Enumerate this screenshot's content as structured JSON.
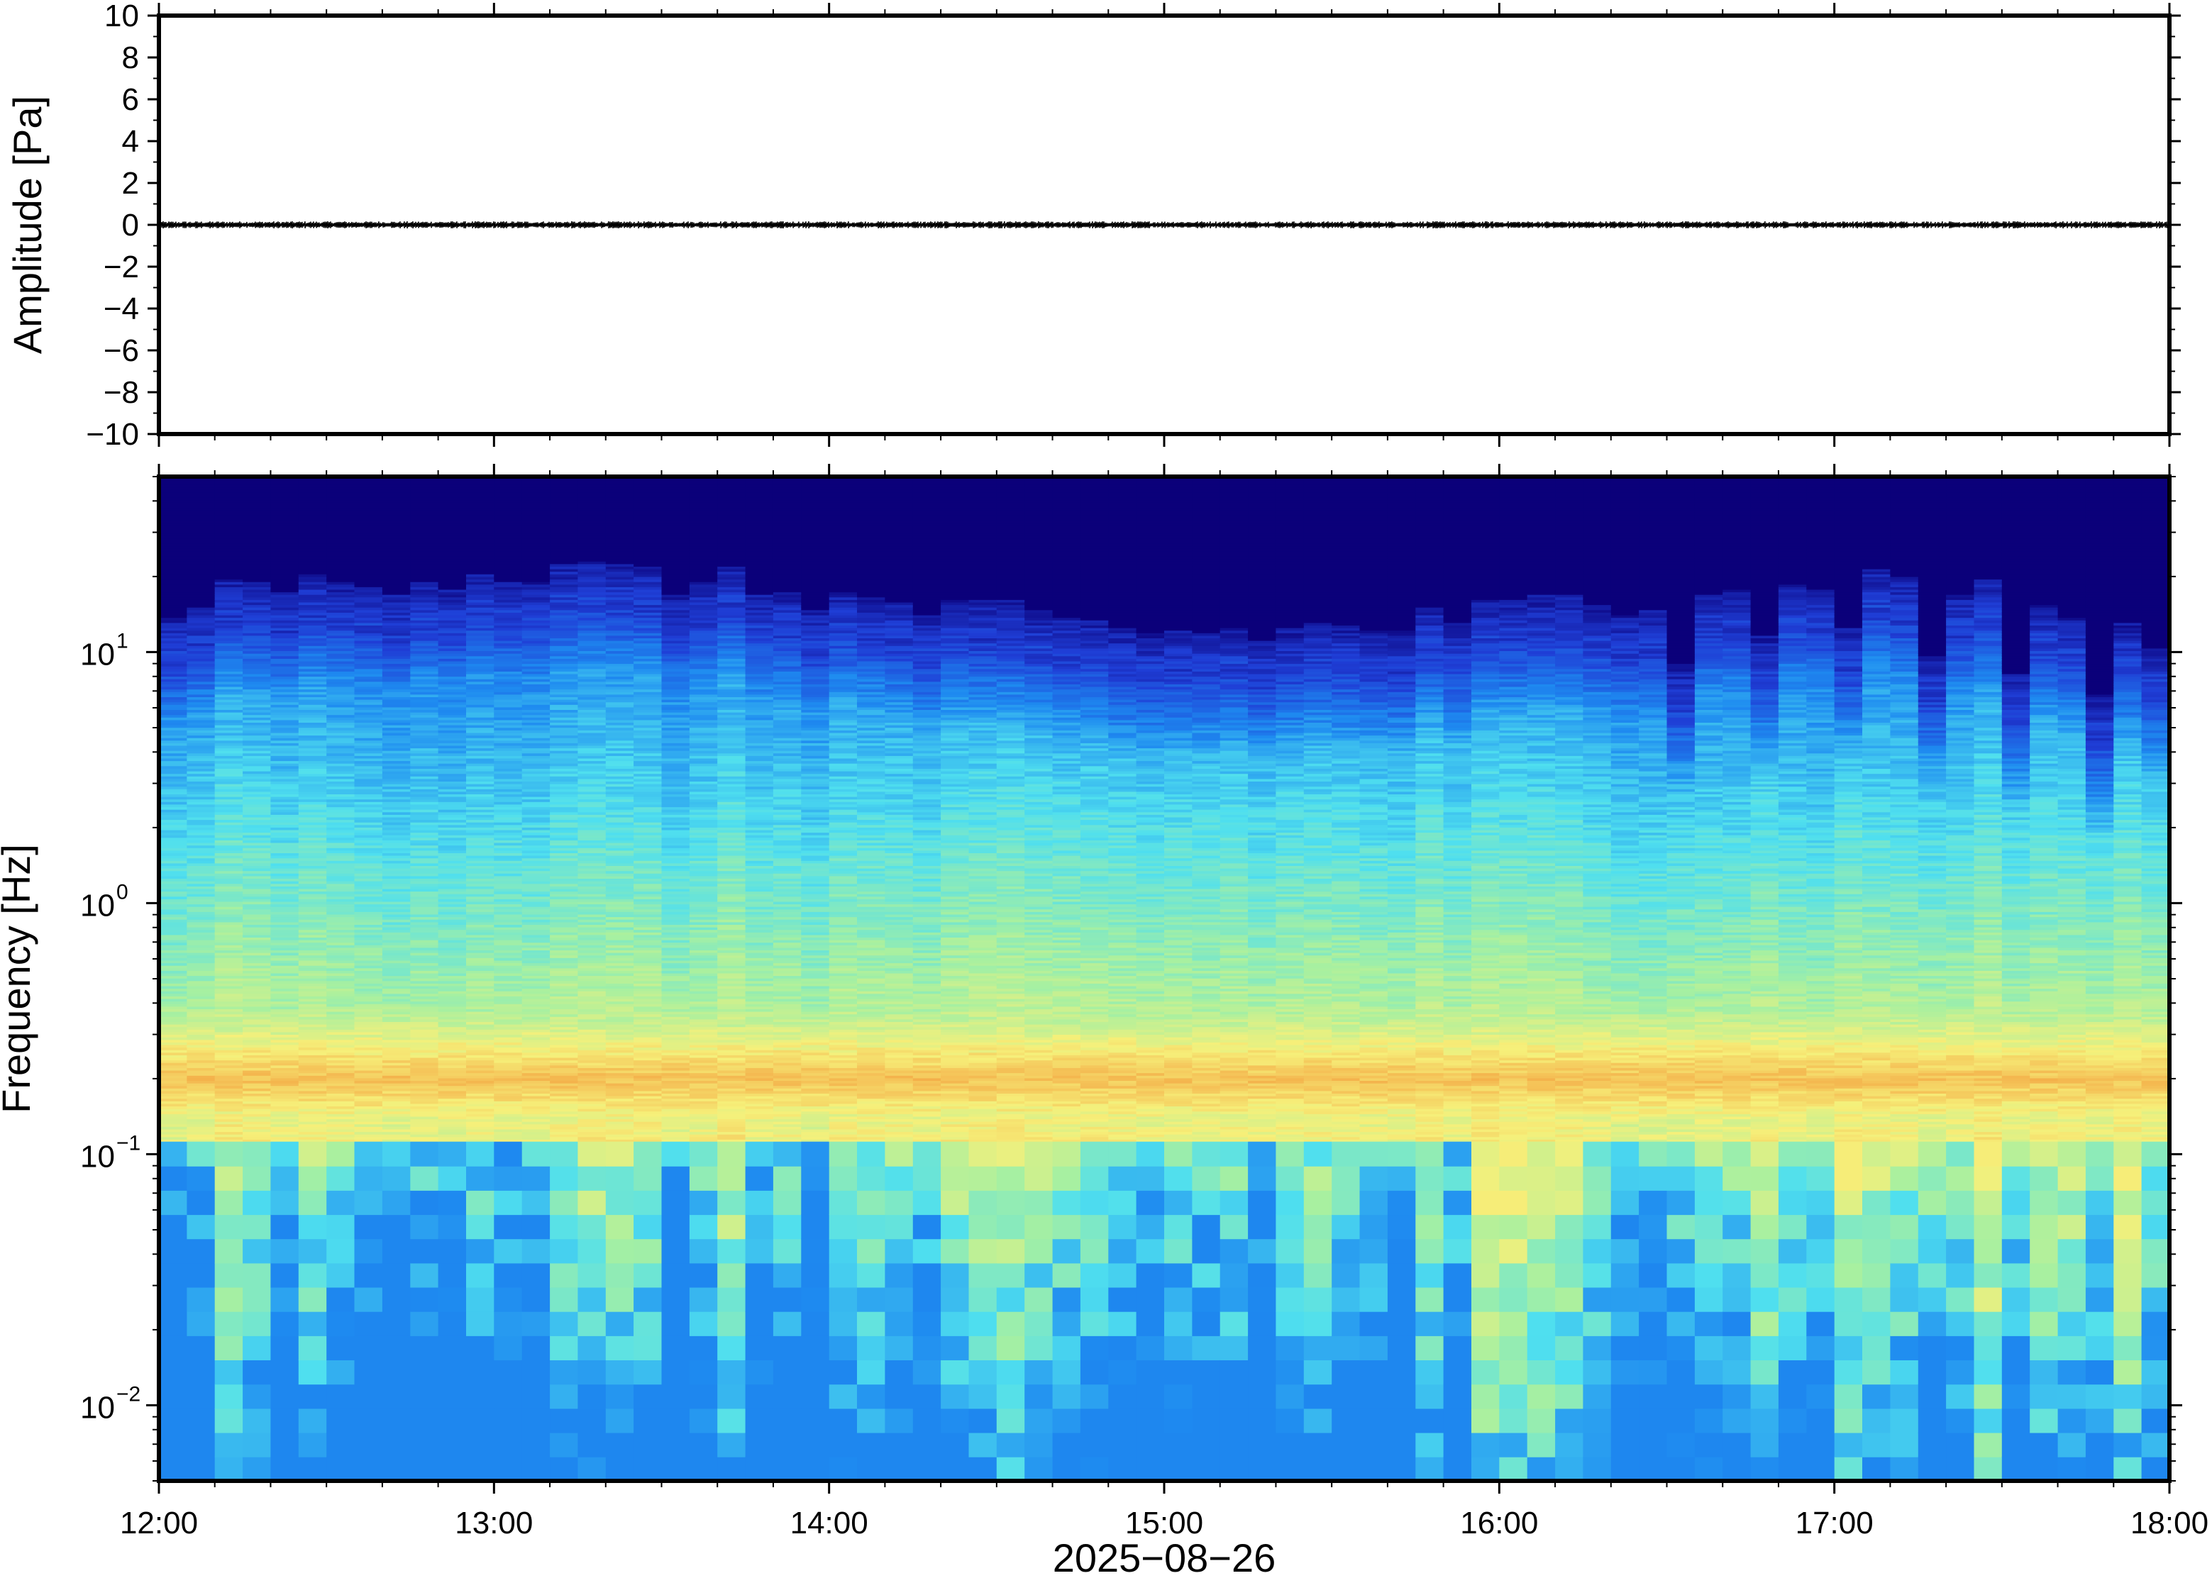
{
  "chart_data": [
    {
      "type": "line",
      "ylabel": "Amplitude [Pa]",
      "ylim": [
        -10,
        10
      ],
      "yticks": [
        "10",
        "8",
        "6",
        "4",
        "2",
        "0",
        "−2",
        "−4",
        "−6",
        "−8",
        "−10"
      ],
      "yticks_values": [
        10,
        8,
        6,
        4,
        2,
        0,
        -2,
        -4,
        -6,
        -8,
        -10
      ],
      "xlim": [
        "12:00",
        "18:00"
      ],
      "grid": false,
      "series": [
        {
          "values_description": "noise trace with amplitude well under 0.1 Pa",
          "x": [
            12.0,
            18.0
          ],
          "y": [
            0,
            0
          ]
        }
      ]
    },
    {
      "type": "heatmap",
      "ylabel": "Frequency [Hz]",
      "yscale": "log",
      "yticks": [
        {
          "base": "10",
          "exp": "1",
          "value": 10
        },
        {
          "base": "10",
          "exp": "0",
          "value": 1
        },
        {
          "base": "10",
          "exp": "−1",
          "value": 0.1
        },
        {
          "base": "10",
          "exp": "−2",
          "value": 0.01
        }
      ],
      "ylim": [
        0.005,
        50
      ],
      "xlabel": "2025−08−26",
      "xticks": [
        "12:00",
        "13:00",
        "14:00",
        "15:00",
        "16:00",
        "17:00",
        "18:00"
      ],
      "xlim": [
        "12:00",
        "18:00"
      ],
      "colormap": [
        "#0b007a",
        "#1f3ed6",
        "#1e8af0",
        "#4fdfef",
        "#a8f0a0",
        "#f6f07a",
        "#f4b04a",
        "#e05a2a"
      ],
      "band_peak_hz": 0.2
    }
  ]
}
